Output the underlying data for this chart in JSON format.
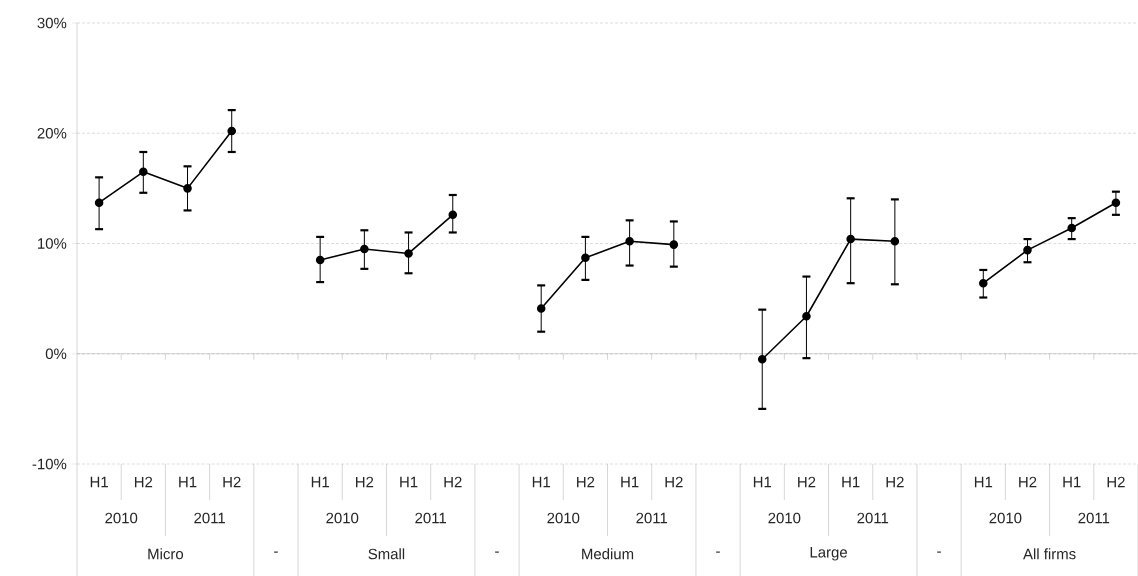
{
  "chart_data": {
    "type": "line",
    "marker": "circle",
    "line_style": "solid",
    "grid": "y",
    "color": "#000000",
    "categories": [
      "H1",
      "H2",
      "H1",
      "H2",
      null,
      "H1",
      "H2",
      "H1",
      "H2",
      null,
      "H1",
      "H2",
      "H1",
      "H2",
      null,
      "H1",
      "H2",
      "H1",
      "H2",
      null,
      "H1",
      "H2",
      "H1",
      "H2"
    ],
    "values": [
      13.7,
      16.5,
      15.0,
      20.2,
      null,
      8.5,
      9.5,
      9.1,
      12.6,
      null,
      4.1,
      8.7,
      10.2,
      9.9,
      null,
      -0.5,
      3.4,
      10.4,
      10.2,
      null,
      6.4,
      9.4,
      11.4,
      13.7
    ],
    "errors": [
      [
        11.3,
        16.0
      ],
      [
        14.6,
        18.3
      ],
      [
        13.0,
        17.0
      ],
      [
        18.3,
        22.1
      ],
      null,
      [
        6.5,
        10.6
      ],
      [
        7.7,
        11.2
      ],
      [
        7.3,
        11.0
      ],
      [
        11.0,
        14.4
      ],
      null,
      [
        2.0,
        6.2
      ],
      [
        6.7,
        10.6
      ],
      [
        8.0,
        12.1
      ],
      [
        7.9,
        12.0
      ],
      null,
      [
        -5.0,
        4.0
      ],
      [
        -0.4,
        7.0
      ],
      [
        6.4,
        14.1
      ],
      [
        6.3,
        14.0
      ],
      null,
      [
        5.1,
        7.6
      ],
      [
        8.3,
        10.4
      ],
      [
        10.4,
        12.3
      ],
      [
        12.6,
        14.7
      ]
    ],
    "ylim": [
      -10,
      30
    ],
    "yticks": [
      {
        "value": -10,
        "label": "-10%"
      },
      {
        "value": 0,
        "label": "0%"
      },
      {
        "value": 10,
        "label": "10%"
      },
      {
        "value": 20,
        "label": "20%"
      },
      {
        "value": 30,
        "label": "30%"
      }
    ],
    "annotations": [
      "2010",
      "2011",
      "Micro",
      "-",
      "2010",
      "2011",
      "Small",
      "-",
      "2010",
      "2011",
      "Medium",
      "-",
      "2010",
      "2011",
      "Large",
      "-",
      "2010",
      "2011",
      "All firms"
    ]
  }
}
